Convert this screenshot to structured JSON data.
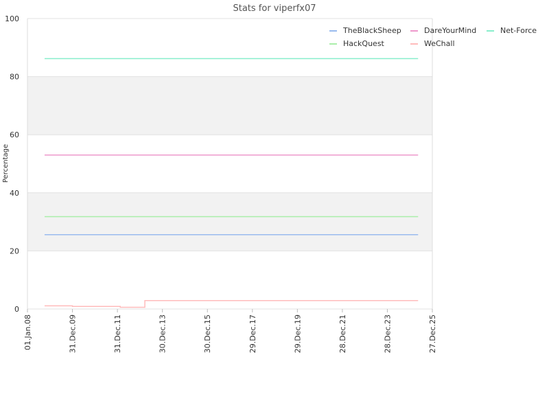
{
  "chart_data": {
    "type": "line",
    "title": "Stats for viperfx07",
    "ylabel": "Percentage",
    "xlim": [
      "2008-01-01",
      "2025-12-27"
    ],
    "xticks": [
      {
        "value": "2008-01-01",
        "label": "01.Jan.08"
      },
      {
        "value": "2009-12-31",
        "label": "31.Dec.09"
      },
      {
        "value": "2011-12-31",
        "label": "31.Dec.11"
      },
      {
        "value": "2013-12-30",
        "label": "30.Dec.13"
      },
      {
        "value": "2015-12-30",
        "label": "30.Dec.15"
      },
      {
        "value": "2017-12-29",
        "label": "29.Dec.17"
      },
      {
        "value": "2019-12-29",
        "label": "29.Dec.19"
      },
      {
        "value": "2021-12-28",
        "label": "28.Dec.21"
      },
      {
        "value": "2023-12-28",
        "label": "28.Dec.23"
      },
      {
        "value": "2025-12-27",
        "label": "27.Dec.25"
      }
    ],
    "ylim": [
      0,
      100
    ],
    "yticks": [
      0,
      20,
      40,
      60,
      80,
      100
    ],
    "bands": true,
    "series": [
      {
        "name": "TheBlackSheep",
        "color": "#99bbee",
        "x": [
          "2008-10-05",
          "2025-05-10"
        ],
        "values": [
          25.6,
          25.6
        ]
      },
      {
        "name": "DareYourMind",
        "color": "#ee99cc",
        "x": [
          "2008-10-05",
          "2025-05-10"
        ],
        "values": [
          53,
          53
        ]
      },
      {
        "name": "Net-Force",
        "color": "#88eecc",
        "x": [
          "2008-10-05",
          "2025-05-10"
        ],
        "values": [
          86.2,
          86.2
        ]
      },
      {
        "name": "HackQuest",
        "color": "#aaeeaa",
        "x": [
          "2008-10-05",
          "2025-05-10"
        ],
        "values": [
          31.8,
          31.8
        ]
      },
      {
        "name": "WeChall",
        "color": "#ffbbbb",
        "x": [
          "2008-10-05",
          "2009-12-31",
          "2009-12-31",
          "2012-02-15",
          "2012-02-15",
          "2013-03-20",
          "2013-03-20",
          "2025-05-10"
        ],
        "values": [
          1.1,
          1.1,
          0.9,
          0.9,
          0.6,
          0.6,
          2.9,
          2.9
        ]
      }
    ]
  }
}
